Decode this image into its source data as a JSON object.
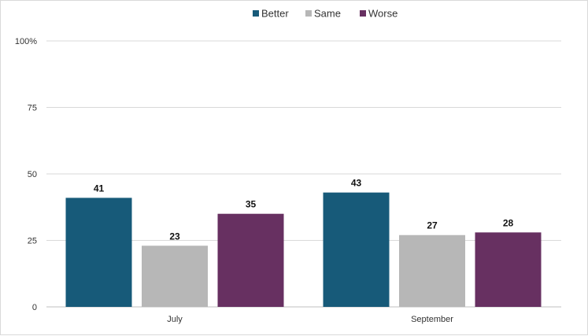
{
  "chart_data": {
    "type": "bar",
    "categories": [
      "July",
      "September"
    ],
    "series": [
      {
        "name": "Better",
        "values": [
          41,
          43
        ],
        "color": "#175a79"
      },
      {
        "name": "Same",
        "values": [
          23,
          27
        ],
        "color": "#b7b7b7"
      },
      {
        "name": "Worse",
        "values": [
          35,
          28
        ],
        "color": "#673061"
      }
    ],
    "ylim": [
      0,
      100
    ],
    "yticks": [
      0,
      25,
      50,
      75,
      100
    ],
    "ytick_labels": [
      "0",
      "25",
      "50",
      "75",
      "100%"
    ],
    "grid": true,
    "legend_position": "top-center",
    "data_labels": true
  }
}
